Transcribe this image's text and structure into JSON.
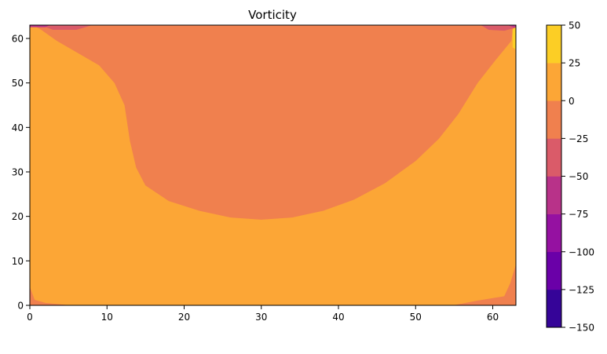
{
  "chart_data": {
    "type": "contourf",
    "title": "Vorticity",
    "xlabel": "",
    "ylabel": "",
    "xlim": [
      0,
      63
    ],
    "ylim": [
      0,
      63
    ],
    "x_ticks": [
      0,
      10,
      20,
      30,
      40,
      50,
      60
    ],
    "y_ticks": [
      0,
      10,
      20,
      30,
      40,
      50,
      60
    ],
    "grid": false,
    "colormap": "plasma",
    "levels": [
      -150,
      -125,
      -100,
      -75,
      -50,
      -25,
      0,
      25,
      50
    ],
    "level_colors": [
      "#350498",
      "#6a00a8",
      "#9511a1",
      "#b83289",
      "#da5b69",
      "#f0804e",
      "#fca636",
      "#fcce25"
    ],
    "colorbar_ticks": [
      -150,
      -125,
      -100,
      -75,
      -50,
      -25,
      0,
      25,
      50
    ],
    "regions": [
      {
        "band": [
          0,
          25
        ],
        "polygon": [
          [
            0,
            0
          ],
          [
            63,
            0
          ],
          [
            63,
            63
          ],
          [
            0,
            63
          ]
        ]
      },
      {
        "band": [
          -25,
          0
        ],
        "polygon": [
          [
            0.5,
            63
          ],
          [
            1.5,
            62
          ],
          [
            3.5,
            59.5
          ],
          [
            6,
            57
          ],
          [
            9,
            54
          ],
          [
            11,
            50
          ],
          [
            12.3,
            45
          ],
          [
            13,
            37
          ],
          [
            13.8,
            31
          ],
          [
            15,
            27
          ],
          [
            18,
            23.5
          ],
          [
            22,
            21.3
          ],
          [
            26,
            19.8
          ],
          [
            30,
            19.3
          ],
          [
            34,
            19.8
          ],
          [
            38,
            21.3
          ],
          [
            42,
            23.8
          ],
          [
            46,
            27.5
          ],
          [
            50,
            32.5
          ],
          [
            53,
            37.5
          ],
          [
            55.5,
            43
          ],
          [
            58,
            50
          ],
          [
            60.5,
            55.5
          ],
          [
            62.4,
            59.5
          ],
          [
            62.6,
            63
          ]
        ]
      },
      {
        "band": [
          -50,
          -25
        ],
        "polygon": [
          [
            1.5,
            63
          ],
          [
            3,
            62
          ],
          [
            6,
            62
          ],
          [
            8,
            63
          ]
        ]
      },
      {
        "band": [
          -50,
          -25
        ],
        "polygon": [
          [
            58.5,
            63
          ],
          [
            59.5,
            62
          ],
          [
            61.5,
            61.8
          ],
          [
            63,
            62.5
          ],
          [
            63,
            63
          ]
        ]
      },
      {
        "band": [
          -75,
          -50
        ],
        "polygon": [
          [
            0,
            63
          ],
          [
            0,
            62.6
          ],
          [
            2,
            62.6
          ],
          [
            2.5,
            63
          ]
        ]
      },
      {
        "band": [
          -75,
          -50
        ],
        "polygon": [
          [
            62,
            63
          ],
          [
            63,
            62.4
          ],
          [
            63,
            63
          ]
        ]
      },
      {
        "band": [
          25,
          50
        ],
        "polygon": [
          [
            62.6,
            58
          ],
          [
            63,
            57.6
          ],
          [
            63,
            62.5
          ],
          [
            62.6,
            62
          ]
        ]
      },
      {
        "band": [
          -25,
          0
        ],
        "polygon": [
          [
            0,
            0
          ],
          [
            0,
            4
          ],
          [
            0.6,
            1.2
          ],
          [
            2,
            0.5
          ],
          [
            5,
            0
          ]
        ]
      },
      {
        "band": [
          -25,
          0
        ],
        "polygon": [
          [
            55,
            0
          ],
          [
            58,
            1
          ],
          [
            61.5,
            2
          ],
          [
            62.3,
            5
          ],
          [
            63,
            9
          ],
          [
            63,
            0
          ]
        ]
      }
    ]
  }
}
